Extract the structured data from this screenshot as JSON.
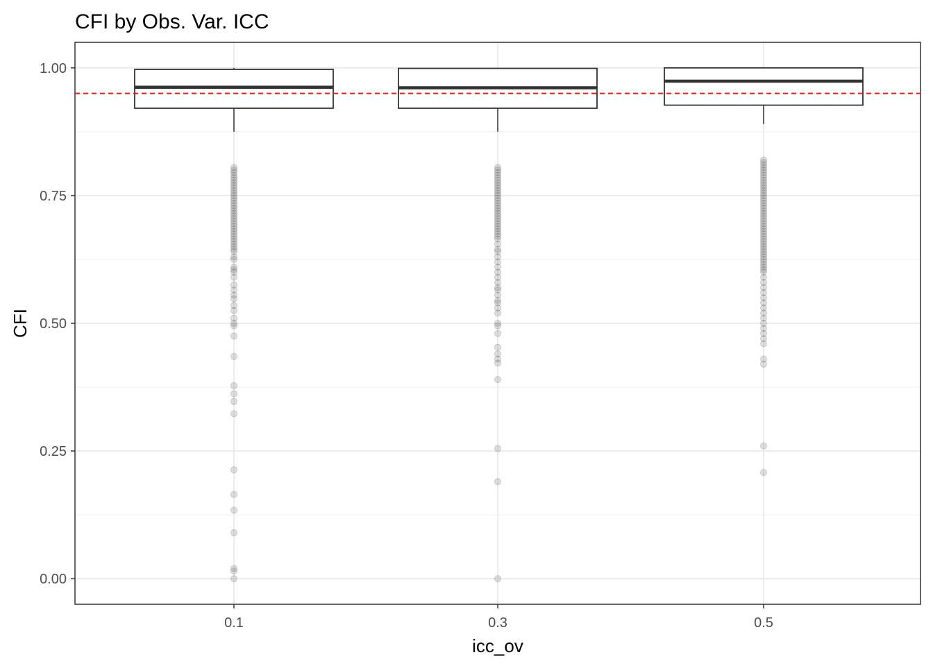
{
  "chart_data": {
    "type": "boxplot",
    "title": "CFI by Obs. Var. ICC",
    "xlabel": "icc_ov",
    "ylabel": "CFI",
    "ylim": [
      -0.05,
      1.05
    ],
    "y_ticks": [
      "0.00",
      "0.25",
      "0.50",
      "0.75",
      "1.00"
    ],
    "categories": [
      "0.1",
      "0.3",
      "0.5"
    ],
    "grid": true,
    "reference_line": {
      "y": 0.95,
      "color": "#e41a1c",
      "style": "dashed"
    },
    "colors": {
      "box_stroke": "#333333",
      "outlier": "#555555",
      "grid": "#ebebeb",
      "panel_border": "#333333"
    },
    "boxes": [
      {
        "category": "0.1",
        "whisker_low": 0.92,
        "q1": 0.921,
        "median": 0.962,
        "q3": 0.997,
        "whisker_high": 1.0,
        "outliers": [
          0.805,
          0.8,
          0.795,
          0.79,
          0.785,
          0.78,
          0.775,
          0.77,
          0.765,
          0.76,
          0.755,
          0.75,
          0.745,
          0.74,
          0.735,
          0.73,
          0.725,
          0.72,
          0.715,
          0.71,
          0.705,
          0.7,
          0.695,
          0.69,
          0.685,
          0.68,
          0.675,
          0.67,
          0.665,
          0.66,
          0.655,
          0.65,
          0.645,
          0.64,
          0.63,
          0.625,
          0.61,
          0.605,
          0.6,
          0.59,
          0.575,
          0.565,
          0.555,
          0.548,
          0.535,
          0.525,
          0.51,
          0.5,
          0.495,
          0.475,
          0.435,
          0.378,
          0.362,
          0.347,
          0.323,
          0.213,
          0.165,
          0.134,
          0.09,
          0.02,
          0.015,
          0.0
        ]
      },
      {
        "category": "0.3",
        "whisker_low": 0.92,
        "q1": 0.921,
        "median": 0.961,
        "q3": 0.999,
        "whisker_high": 1.0,
        "outliers": [
          0.805,
          0.8,
          0.795,
          0.79,
          0.785,
          0.78,
          0.775,
          0.77,
          0.765,
          0.76,
          0.755,
          0.75,
          0.745,
          0.74,
          0.735,
          0.73,
          0.725,
          0.72,
          0.715,
          0.71,
          0.705,
          0.7,
          0.695,
          0.69,
          0.685,
          0.68,
          0.675,
          0.67,
          0.665,
          0.655,
          0.645,
          0.64,
          0.63,
          0.62,
          0.61,
          0.6,
          0.59,
          0.58,
          0.57,
          0.565,
          0.555,
          0.545,
          0.54,
          0.53,
          0.52,
          0.5,
          0.495,
          0.48,
          0.453,
          0.44,
          0.43,
          0.422,
          0.39,
          0.255,
          0.19,
          0.0
        ]
      },
      {
        "category": "0.5",
        "whisker_low": 0.927,
        "q1": 0.927,
        "median": 0.974,
        "q3": 1.0,
        "whisker_high": 1.0,
        "outliers": [
          0.82,
          0.815,
          0.81,
          0.805,
          0.8,
          0.795,
          0.79,
          0.785,
          0.78,
          0.775,
          0.77,
          0.765,
          0.76,
          0.755,
          0.75,
          0.745,
          0.74,
          0.735,
          0.73,
          0.725,
          0.72,
          0.715,
          0.71,
          0.705,
          0.7,
          0.695,
          0.69,
          0.685,
          0.68,
          0.675,
          0.67,
          0.665,
          0.66,
          0.655,
          0.65,
          0.645,
          0.64,
          0.635,
          0.63,
          0.625,
          0.62,
          0.615,
          0.61,
          0.605,
          0.6,
          0.59,
          0.58,
          0.57,
          0.56,
          0.55,
          0.54,
          0.53,
          0.52,
          0.51,
          0.5,
          0.49,
          0.48,
          0.47,
          0.46,
          0.43,
          0.42,
          0.26,
          0.208
        ]
      }
    ]
  }
}
